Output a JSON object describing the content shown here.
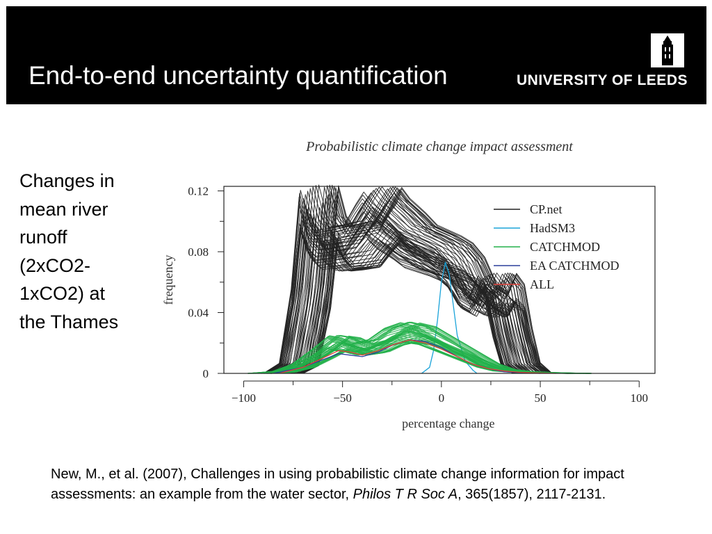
{
  "slide": {
    "title": "End-to-end uncertainty quantification",
    "logo_text": "UNIVERSITY OF LEEDS",
    "caption": "Changes in mean river runoff (2xCO2-1xCO2) at the Thames",
    "citation": {
      "text": "New, M., et al. (2007), Challenges in using probabilistic climate change information for impact assessments: an example from the water sector, ",
      "journal": "Philos T R Soc A",
      "rest": ", 365(1857), 2117-2131."
    }
  },
  "chart_data": {
    "type": "line",
    "title": "Probabilistic climate change impact assessment",
    "xlabel": "percentage change",
    "ylabel": "frequency",
    "xlim": [
      -110,
      108
    ],
    "ylim": [
      0,
      0.123
    ],
    "xticks": [
      -100,
      -50,
      0,
      50,
      100
    ],
    "xtick_labels": [
      "−100",
      "−50",
      "0",
      "50",
      "100"
    ],
    "yticks": [
      0,
      0.04,
      0.08,
      0.12
    ],
    "ytick_labels": [
      "0",
      "0.04",
      "0.08",
      "0.12"
    ],
    "legend_position": "top-right",
    "grid": false,
    "series": [
      {
        "name": "CP.net",
        "color": "#222222",
        "x": [
          -80,
          -72,
          -66,
          -62,
          -58,
          -54,
          -48,
          -40,
          -34,
          -30,
          -26,
          -22,
          -18,
          -12,
          -6,
          0,
          6,
          12,
          18,
          24,
          28,
          32,
          36,
          40,
          46
        ],
        "y": [
          0,
          0.006,
          0.05,
          0.105,
          0.088,
          0.082,
          0.083,
          0.085,
          0.097,
          0.104,
          0.098,
          0.094,
          0.09,
          0.083,
          0.08,
          0.077,
          0.073,
          0.065,
          0.05,
          0.045,
          0.056,
          0.05,
          0.025,
          0.006,
          0
        ]
      },
      {
        "name": "HadSM3",
        "color": "#1aa3d9",
        "x": [
          -10,
          -6,
          -4,
          -2,
          0,
          2,
          4,
          6,
          8,
          12,
          16,
          18
        ],
        "y": [
          0,
          0.004,
          0.015,
          0.035,
          0.06,
          0.073,
          0.065,
          0.045,
          0.025,
          0.008,
          0.002,
          0
        ]
      },
      {
        "name": "CATCHMOD",
        "color": "#22b04a",
        "x": [
          -92,
          -80,
          -70,
          -60,
          -52,
          -46,
          -40,
          -32,
          -24,
          -16,
          -8,
          0,
          8,
          16,
          24,
          32,
          40,
          50,
          60,
          70
        ],
        "y": [
          0,
          0.001,
          0.005,
          0.013,
          0.02,
          0.019,
          0.016,
          0.018,
          0.024,
          0.027,
          0.025,
          0.02,
          0.015,
          0.01,
          0.005,
          0.002,
          0.001,
          0.0005,
          0.0002,
          0
        ]
      },
      {
        "name": "EA CATCHMOD",
        "color": "#2c3e9c",
        "x": [
          -85,
          -70,
          -60,
          -52,
          -46,
          -40,
          -32,
          -24,
          -16,
          -8,
          0,
          8,
          16,
          24,
          32,
          40,
          50
        ],
        "y": [
          0,
          0.004,
          0.009,
          0.013,
          0.012,
          0.011,
          0.014,
          0.019,
          0.022,
          0.021,
          0.017,
          0.011,
          0.006,
          0.003,
          0.001,
          0.0005,
          0
        ]
      },
      {
        "name": "ALL",
        "color": "#e0413a",
        "x": [
          -82,
          -70,
          -60,
          -52,
          -46,
          -40,
          -32,
          -24,
          -16,
          -8,
          0,
          8,
          16,
          24,
          32,
          40,
          48,
          58
        ],
        "y": [
          0,
          0.004,
          0.01,
          0.015,
          0.014,
          0.012,
          0.015,
          0.019,
          0.022,
          0.02,
          0.016,
          0.011,
          0.006,
          0.003,
          0.0015,
          0.0007,
          0.0003,
          0
        ]
      }
    ]
  }
}
